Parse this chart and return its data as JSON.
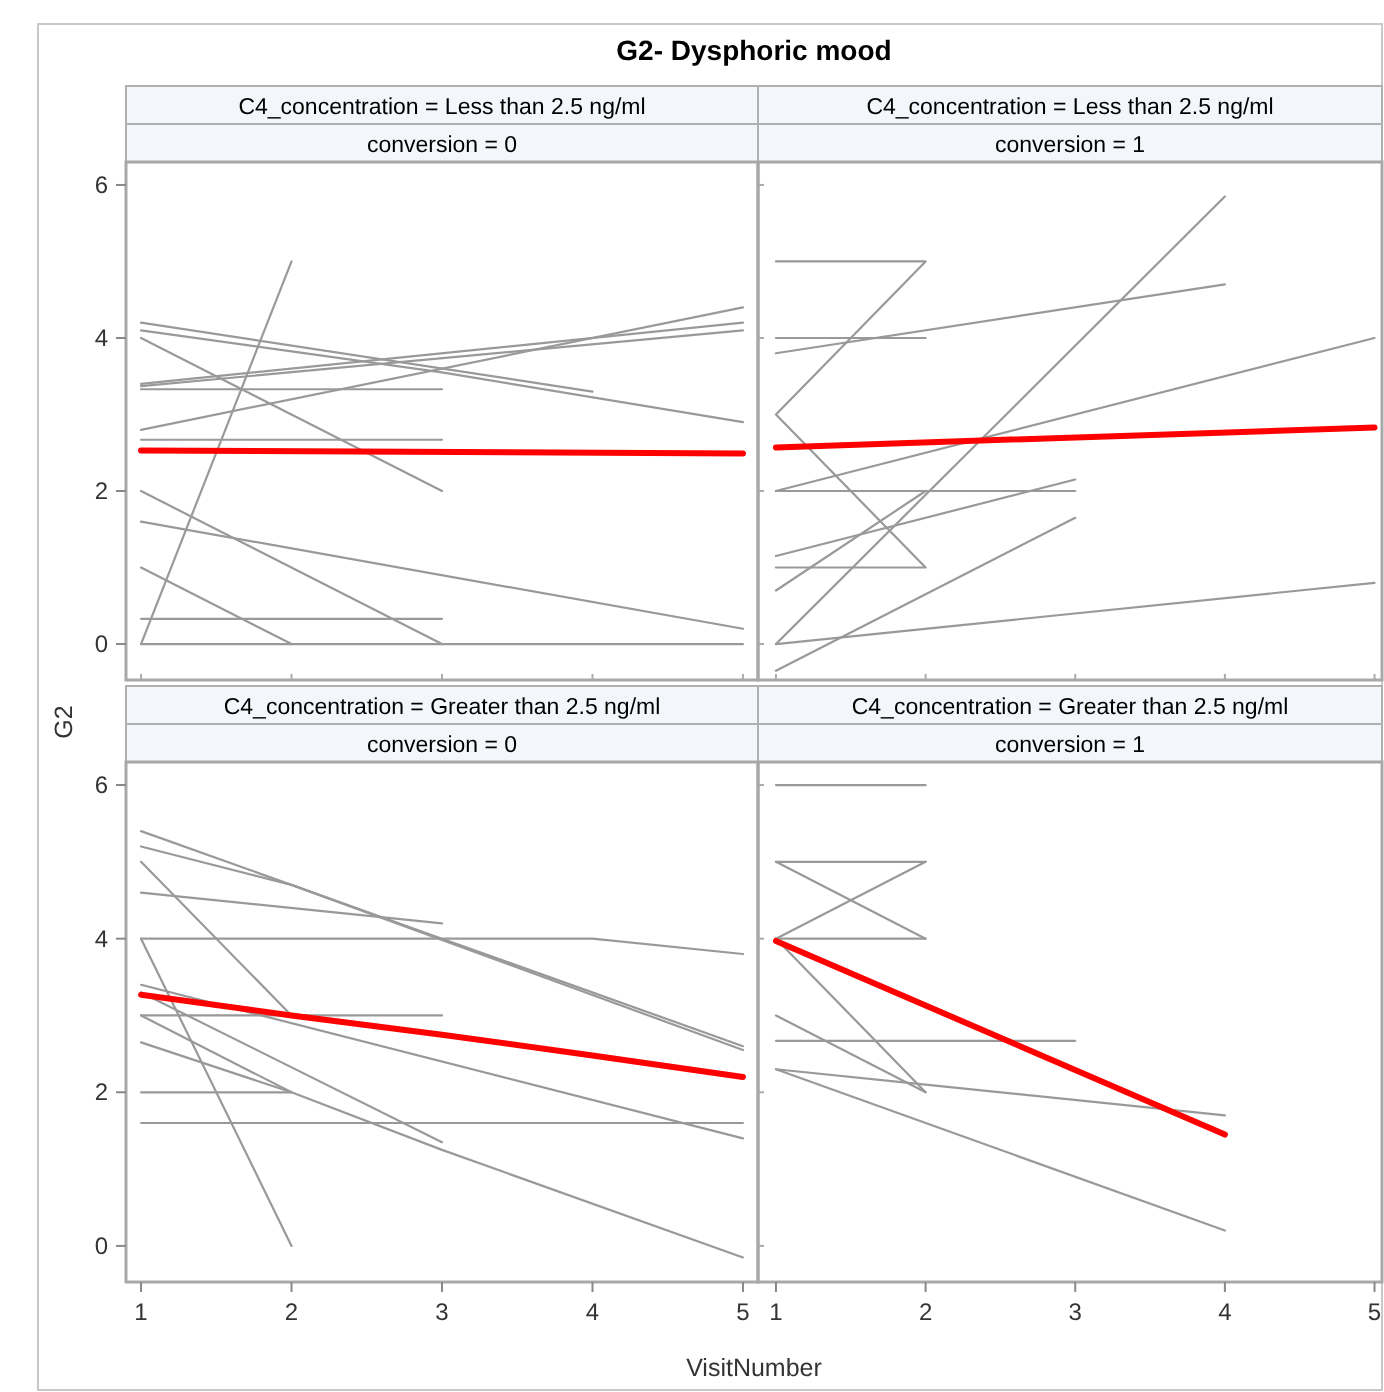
{
  "chart_data": [
    {
      "type": "line",
      "title": "C4_concentration = Less than 2.5 ng/ml",
      "subtitle": "conversion = 0",
      "annotations": [
        "G2- Dysphoric mood"
      ],
      "ylabel": "G2",
      "xlim": [
        0.9,
        5.1
      ],
      "ylim": [
        -0.47,
        6.3
      ],
      "xticks": [
        1,
        2,
        3,
        4,
        5
      ],
      "yticks": [
        0,
        2,
        4,
        6
      ],
      "tick_labels": "y",
      "series": [
        {
          "color": "#999999",
          "x": [
            1,
            2
          ],
          "values": [
            0,
            5
          ]
        },
        {
          "color": "#999999",
          "x": [
            1,
            4
          ],
          "values": [
            4.2,
            3.3
          ]
        },
        {
          "color": "#999999",
          "x": [
            1,
            3,
            5
          ],
          "values": [
            4.1,
            3.55,
            2.9
          ]
        },
        {
          "color": "#999999",
          "x": [
            1,
            3
          ],
          "values": [
            4.0,
            2.0
          ]
        },
        {
          "color": "#999999",
          "x": [
            1,
            5
          ],
          "values": [
            2.8,
            4.4
          ]
        },
        {
          "color": "#999999",
          "x": [
            1,
            5
          ],
          "values": [
            3.4,
            4.2
          ]
        },
        {
          "color": "#999999",
          "x": [
            1,
            5
          ],
          "values": [
            3.37,
            4.1
          ]
        },
        {
          "color": "#999999",
          "x": [
            1,
            3
          ],
          "values": [
            3.33,
            3.33
          ]
        },
        {
          "color": "#999999",
          "x": [
            1,
            3
          ],
          "values": [
            2.67,
            2.67
          ]
        },
        {
          "color": "#999999",
          "x": [
            1,
            3
          ],
          "values": [
            2,
            0
          ]
        },
        {
          "color": "#999999",
          "x": [
            1,
            5
          ],
          "values": [
            1.6,
            0.2
          ]
        },
        {
          "color": "#999999",
          "x": [
            1,
            2
          ],
          "values": [
            1,
            0
          ]
        },
        {
          "color": "#999999",
          "x": [
            1,
            3
          ],
          "values": [
            0.33,
            0.33
          ]
        },
        {
          "color": "#999999",
          "x": [
            1,
            5
          ],
          "values": [
            0,
            0
          ]
        },
        {
          "color": "#ff0000",
          "x": [
            1,
            5
          ],
          "values": [
            2.53,
            2.49
          ]
        }
      ]
    },
    {
      "type": "line",
      "title": "C4_concentration = Less than 2.5 ng/ml",
      "subtitle": "conversion = 1",
      "xlim": [
        0.88,
        5.05
      ],
      "ylim": [
        -0.47,
        6.3
      ],
      "xticks": [
        1,
        2,
        3,
        4,
        5
      ],
      "yticks": [
        0,
        2,
        4,
        6
      ],
      "tick_labels": false,
      "series": [
        {
          "color": "#999999",
          "x": [
            1,
            2,
            1,
            2,
            1
          ],
          "values": [
            5,
            5,
            3,
            1,
            1
          ]
        },
        {
          "color": "#999999",
          "x": [
            1,
            2
          ],
          "values": [
            4,
            4
          ]
        },
        {
          "color": "#999999",
          "x": [
            1,
            4
          ],
          "values": [
            3.8,
            4.7
          ]
        },
        {
          "color": "#999999",
          "x": [
            1,
            4
          ],
          "values": [
            0,
            5.85
          ]
        },
        {
          "color": "#999999",
          "x": [
            1,
            5
          ],
          "values": [
            0,
            0.8
          ]
        },
        {
          "color": "#999999",
          "x": [
            1,
            5
          ],
          "values": [
            2,
            4
          ]
        },
        {
          "color": "#999999",
          "x": [
            1,
            3
          ],
          "values": [
            2,
            2
          ]
        },
        {
          "color": "#999999",
          "x": [
            1,
            2
          ],
          "values": [
            0.7,
            2
          ]
        },
        {
          "color": "#999999",
          "x": [
            1,
            3
          ],
          "values": [
            1.15,
            2.15
          ]
        },
        {
          "color": "#999999",
          "x": [
            1,
            3
          ],
          "values": [
            -0.35,
            1.65
          ]
        },
        {
          "color": "#ff0000",
          "x": [
            1,
            5
          ],
          "values": [
            2.57,
            2.83
          ]
        }
      ]
    },
    {
      "type": "line",
      "title": "C4_concentration = Greater than 2.5 ng/ml",
      "subtitle": "conversion = 0",
      "xlabel": "VisitNumber",
      "xlim": [
        0.9,
        5.1
      ],
      "ylim": [
        -0.47,
        6.3
      ],
      "xticks": [
        1,
        2,
        3,
        4,
        5
      ],
      "yticks": [
        0,
        2,
        4,
        6
      ],
      "series": [
        {
          "color": "#999999",
          "x": [
            1,
            3,
            5
          ],
          "values": [
            5.4,
            4.0,
            2.6
          ]
        },
        {
          "color": "#999999",
          "x": [
            1,
            2,
            5
          ],
          "values": [
            5.2,
            4.7,
            2.55
          ]
        },
        {
          "color": "#999999",
          "x": [
            1,
            3
          ],
          "values": [
            4.6,
            4.2
          ]
        },
        {
          "color": "#999999",
          "x": [
            1,
            2
          ],
          "values": [
            5,
            3
          ]
        },
        {
          "color": "#999999",
          "x": [
            1,
            3
          ],
          "values": [
            3,
            3
          ]
        },
        {
          "color": "#999999",
          "x": [
            1,
            4,
            5
          ],
          "values": [
            4,
            4,
            3.8
          ]
        },
        {
          "color": "#999999",
          "x": [
            1,
            2
          ],
          "values": [
            4,
            0
          ]
        },
        {
          "color": "#999999",
          "x": [
            1,
            5
          ],
          "values": [
            3.4,
            1.4
          ]
        },
        {
          "color": "#999999",
          "x": [
            1,
            3
          ],
          "values": [
            3.3,
            1.35
          ]
        },
        {
          "color": "#999999",
          "x": [
            1,
            2,
            3,
            5
          ],
          "values": [
            3,
            2,
            1.25,
            -0.15
          ]
        },
        {
          "color": "#999999",
          "x": [
            1,
            2
          ],
          "values": [
            2.65,
            2
          ]
        },
        {
          "color": "#999999",
          "x": [
            1,
            2
          ],
          "values": [
            2,
            2
          ]
        },
        {
          "color": "#999999",
          "x": [
            1,
            5
          ],
          "values": [
            1.6,
            1.6
          ]
        },
        {
          "color": "#ff0000",
          "x": [
            1,
            2,
            3,
            4,
            5
          ],
          "values": [
            3.27,
            3.0,
            2.75,
            2.48,
            2.2
          ]
        }
      ]
    },
    {
      "type": "line",
      "title": "C4_concentration = Greater than 2.5 ng/ml",
      "subtitle": "conversion = 1",
      "xlim": [
        0.88,
        5.05
      ],
      "ylim": [
        -0.47,
        6.3
      ],
      "xticks": [
        1,
        2,
        3,
        4,
        5
      ],
      "yticks": [
        0,
        2,
        4,
        6
      ],
      "tick_labels": "x",
      "series": [
        {
          "color": "#999999",
          "x": [
            1,
            2
          ],
          "values": [
            6,
            6
          ]
        },
        {
          "color": "#999999",
          "x": [
            1,
            2
          ],
          "values": [
            5,
            5
          ]
        },
        {
          "color": "#999999",
          "x": [
            1,
            2
          ],
          "values": [
            5,
            4
          ]
        },
        {
          "color": "#999999",
          "x": [
            1,
            2
          ],
          "values": [
            4,
            5
          ]
        },
        {
          "color": "#999999",
          "x": [
            1,
            2
          ],
          "values": [
            4,
            4
          ]
        },
        {
          "color": "#999999",
          "x": [
            1,
            2
          ],
          "values": [
            4,
            2
          ]
        },
        {
          "color": "#999999",
          "x": [
            1,
            2
          ],
          "values": [
            3,
            2
          ]
        },
        {
          "color": "#999999",
          "x": [
            1,
            3
          ],
          "values": [
            2.67,
            2.67
          ]
        },
        {
          "color": "#999999",
          "x": [
            1,
            2,
            4
          ],
          "values": [
            2.3,
            2.1,
            1.7
          ]
        },
        {
          "color": "#999999",
          "x": [
            1,
            4
          ],
          "values": [
            2.3,
            0.2
          ]
        },
        {
          "color": "#ff0000",
          "x": [
            1,
            4
          ],
          "values": [
            3.97,
            1.45
          ]
        }
      ]
    }
  ]
}
